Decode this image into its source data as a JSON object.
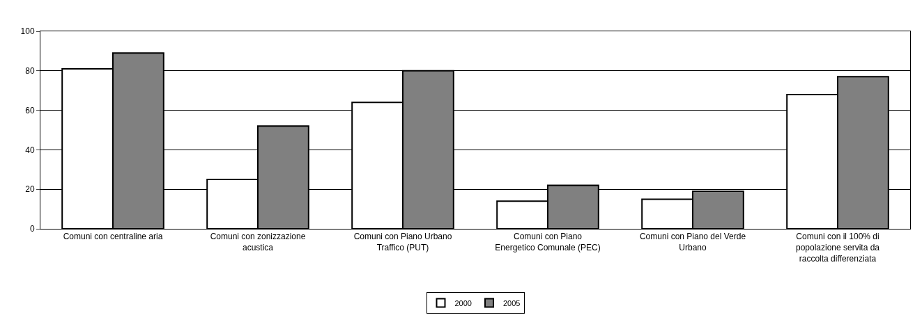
{
  "chart_data": {
    "type": "bar",
    "categories": [
      "Comuni con centraline aria",
      "Comuni con zonizzazione acustica",
      "Comuni con Piano Urbano Traffico (PUT)",
      "Comuni con Piano Energetico Comunale (PEC)",
      "Comuni con Piano del Verde Urbano",
      "Comuni con il 100% di popolazione servita da raccolta differenziata"
    ],
    "series": [
      {
        "name": "2000",
        "color": "#ffffff",
        "values": [
          81,
          25,
          64,
          14,
          15,
          68
        ]
      },
      {
        "name": "2005",
        "color": "#808080",
        "values": [
          89,
          52,
          80,
          22,
          19,
          77
        ]
      }
    ],
    "ylim": [
      0,
      100
    ],
    "yticks": [
      0,
      20,
      40,
      60,
      80,
      100
    ],
    "grid": "y",
    "legend": "bottom"
  }
}
